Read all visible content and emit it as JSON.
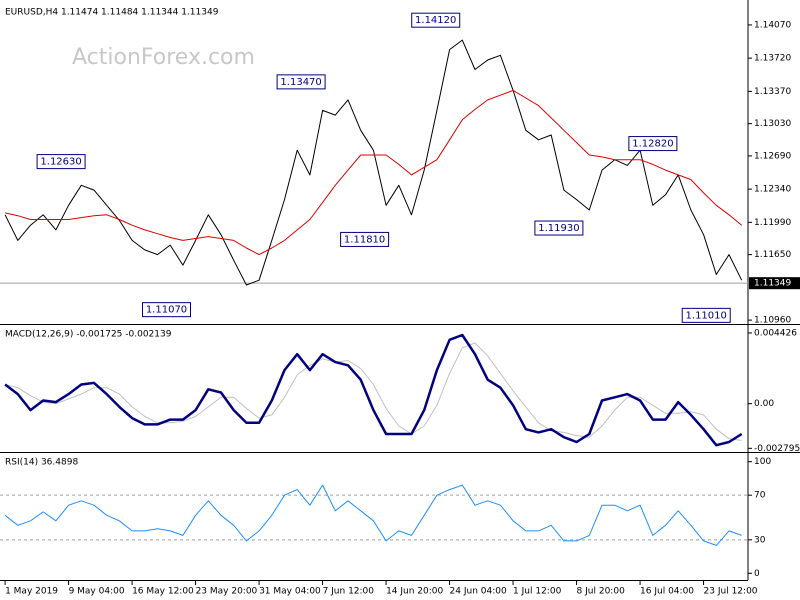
{
  "chart_data": [
    {
      "type": "line",
      "title": "EURUSD,H4  1.11474 1.11484 1.11344 1.11349",
      "watermark": "ActionForex.com",
      "x": [
        0,
        1,
        2,
        3,
        4,
        5,
        6,
        7,
        8,
        9,
        10,
        11,
        12,
        13,
        14,
        15,
        16,
        17,
        18,
        19,
        20,
        21,
        22,
        23,
        24,
        25,
        26,
        27,
        28,
        29,
        30,
        31,
        32,
        33,
        34,
        35,
        36,
        37,
        38,
        39,
        40,
        41,
        42,
        43,
        44,
        45,
        46,
        47,
        48,
        49,
        50,
        51,
        52,
        53,
        54,
        55,
        56,
        57,
        58
      ],
      "series": [
        {
          "color": "#000000",
          "width": 1,
          "values": [
            1.1207,
            1.118,
            1.1196,
            1.1207,
            1.1191,
            1.1217,
            1.1238,
            1.1233,
            1.1217,
            1.1201,
            1.118,
            1.117,
            1.1165,
            1.1175,
            1.1154,
            1.118,
            1.1207,
            1.1186,
            1.1159,
            1.1133,
            1.1138,
            1.118,
            1.1223,
            1.1275,
            1.1249,
            1.1317,
            1.1312,
            1.1328,
            1.1296,
            1.1275,
            1.1217,
            1.1238,
            1.1207,
            1.1254,
            1.1317,
            1.1381,
            1.1391,
            1.136,
            1.137,
            1.1375,
            1.1338,
            1.1296,
            1.1286,
            1.1291,
            1.1233,
            1.1223,
            1.1212,
            1.1254,
            1.1265,
            1.1259,
            1.1275,
            1.1217,
            1.1228,
            1.1249,
            1.1212,
            1.1186,
            1.1144,
            1.1165,
            1.1138
          ]
        },
        {
          "color": "#e00000",
          "width": 1,
          "values": [
            1.1209,
            1.1206,
            1.1202,
            1.1202,
            1.1202,
            1.1202,
            1.1204,
            1.1206,
            1.1207,
            1.1202,
            1.1196,
            1.1191,
            1.1187,
            1.1183,
            1.118,
            1.1182,
            1.1184,
            1.1182,
            1.118,
            1.1172,
            1.1165,
            1.1172,
            1.118,
            1.1191,
            1.1202,
            1.122,
            1.1238,
            1.1254,
            1.127,
            1.127,
            1.127,
            1.126,
            1.1249,
            1.1257,
            1.1265,
            1.1286,
            1.1307,
            1.1318,
            1.1328,
            1.1333,
            1.1338,
            1.133,
            1.1322,
            1.1309,
            1.1296,
            1.1283,
            1.127,
            1.1268,
            1.1265,
            1.1265,
            1.1265,
            1.126,
            1.1254,
            1.1249,
            1.1244,
            1.123,
            1.1217,
            1.1207,
            1.1196
          ]
        }
      ],
      "annotations": [
        {
          "x": 6.3,
          "value": 1.1263,
          "label": "1.12630"
        },
        {
          "x": 14.6,
          "value": 1.1107,
          "label": "1.11070"
        },
        {
          "x": 25.2,
          "value": 1.1347,
          "label": "1.13470"
        },
        {
          "x": 30.2,
          "value": 1.1181,
          "label": "1.11810"
        },
        {
          "x": 35.8,
          "value": 1.1412,
          "label": "1.14120"
        },
        {
          "x": 45.5,
          "value": 1.1193,
          "label": "1.11930"
        },
        {
          "x": 52.9,
          "value": 1.1282,
          "label": "1.12820"
        },
        {
          "x": 57.1,
          "value": 1.1101,
          "label": "1.11010"
        }
      ],
      "current": {
        "value": 1.11349,
        "label": "1.11349"
      },
      "xlim": [
        -0.4,
        58.5
      ],
      "ylim": [
        1.1094,
        1.1428
      ],
      "yticks": [
        {
          "value": 1.1407,
          "label": "1.14070"
        },
        {
          "value": 1.1372,
          "label": "1.13720"
        },
        {
          "value": 1.1337,
          "label": "1.13370"
        },
        {
          "value": 1.1303,
          "label": "1.13030"
        },
        {
          "value": 1.1269,
          "label": "1.12690"
        },
        {
          "value": 1.1234,
          "label": "1.12340"
        },
        {
          "value": 1.1199,
          "label": "1.11990"
        },
        {
          "value": 1.1165,
          "label": "1.11650"
        },
        {
          "value": 1.1096,
          "label": "1.10960"
        }
      ]
    },
    {
      "type": "line",
      "title": "MACD(12,26,9) -0.001725 -0.002139",
      "x": [
        0,
        1,
        2,
        3,
        4,
        5,
        6,
        7,
        8,
        9,
        10,
        11,
        12,
        13,
        14,
        15,
        16,
        17,
        18,
        19,
        20,
        21,
        22,
        23,
        24,
        25,
        26,
        27,
        28,
        29,
        30,
        31,
        32,
        33,
        34,
        35,
        36,
        37,
        38,
        39,
        40,
        41,
        42,
        43,
        44,
        45,
        46,
        47,
        48,
        49,
        50,
        51,
        52,
        53,
        54,
        55,
        56,
        57,
        58
      ],
      "series": [
        {
          "color": "#c0c0c0",
          "width": 1,
          "values": [
            0.0012,
            0.001,
            0.0005,
            0.0001,
            0.0,
            0.0003,
            0.0006,
            0.001,
            0.001,
            0.0006,
            -0.0002,
            -0.0008,
            -0.0012,
            -0.0012,
            -0.0011,
            -0.0008,
            -0.0002,
            0.0004,
            0.0004,
            -0.0003,
            -0.0009,
            -0.0007,
            0.0004,
            0.0018,
            0.0024,
            0.0028,
            0.0026,
            0.0027,
            0.0022,
            0.0012,
            -0.0003,
            -0.0014,
            -0.0019,
            -0.0014,
            -0.0001,
            0.0019,
            0.0035,
            0.0038,
            0.003,
            0.0019,
            0.0008,
            -0.0002,
            -0.0012,
            -0.0017,
            -0.0018,
            -0.002,
            -0.0021,
            -0.0014,
            -0.0004,
            0.0004,
            0.0004,
            -0.0001,
            -0.0006,
            -0.0006,
            -0.0005,
            -0.0007,
            -0.0016,
            -0.0022,
            -0.0023
          ]
        },
        {
          "color": "#000080",
          "width": 2.5,
          "values": [
            0.0012,
            0.0006,
            -0.0004,
            0.0002,
            0.0001,
            0.0006,
            0.0012,
            0.0013,
            0.0006,
            -0.0002,
            -0.0009,
            -0.0013,
            -0.0013,
            -0.001,
            -0.001,
            -0.0004,
            0.0009,
            0.0007,
            -0.0004,
            -0.0012,
            -0.0012,
            0.0002,
            0.0021,
            0.0031,
            0.0021,
            0.0031,
            0.0026,
            0.0024,
            0.0015,
            -0.0004,
            -0.0019,
            -0.0019,
            -0.0019,
            -0.0004,
            0.0021,
            0.004,
            0.0043,
            0.0031,
            0.0015,
            0.001,
            -0.0001,
            -0.0016,
            -0.0018,
            -0.0016,
            -0.0021,
            -0.0024,
            -0.0019,
            0.0002,
            0.0004,
            0.0006,
            0.0002,
            -0.001,
            -0.001,
            0.0001,
            -0.0007,
            -0.0016,
            -0.0026,
            -0.0024,
            -0.0019
          ]
        }
      ],
      "xlim": [
        -0.4,
        58.5
      ],
      "ylim": [
        -0.0029,
        0.0048
      ],
      "yticks": [
        0.004426,
        {
          "value": 0,
          "label": "0.00"
        },
        -0.002795
      ]
    },
    {
      "type": "line",
      "title": "RSI(14) 36.4898",
      "x": [
        0,
        1,
        2,
        3,
        4,
        5,
        6,
        7,
        8,
        9,
        10,
        11,
        12,
        13,
        14,
        15,
        16,
        17,
        18,
        19,
        20,
        21,
        22,
        23,
        24,
        25,
        26,
        27,
        28,
        29,
        30,
        31,
        32,
        33,
        34,
        35,
        36,
        37,
        38,
        39,
        40,
        41,
        42,
        43,
        44,
        45,
        46,
        47,
        48,
        49,
        50,
        51,
        52,
        53,
        54,
        55,
        56,
        57,
        58
      ],
      "series": [
        {
          "color": "#1e90ff",
          "width": 1,
          "values": [
            52,
            43,
            47,
            55,
            47,
            61,
            65,
            61,
            52,
            47,
            38,
            38,
            40,
            38,
            34,
            52,
            65,
            52,
            43,
            29,
            38,
            52,
            70,
            75,
            61,
            79,
            56,
            65,
            56,
            47,
            29,
            38,
            34,
            52,
            70,
            75,
            79,
            61,
            65,
            61,
            47,
            38,
            38,
            43,
            29,
            29,
            34,
            61,
            61,
            56,
            61,
            34,
            43,
            56,
            43,
            29,
            25,
            38,
            34
          ]
        }
      ],
      "levels": [
        70,
        30
      ],
      "xlim": [
        -0.4,
        58.5
      ],
      "ylim": [
        -6,
        106
      ],
      "yticks": [
        100,
        70,
        30,
        0
      ],
      "xticks": [
        {
          "value": 0,
          "label": "1 May 2019"
        },
        {
          "value": 5,
          "label": "9 May 04:00"
        },
        {
          "value": 10,
          "label": "16 May 12:00"
        },
        {
          "value": 15,
          "label": "23 May 20:00"
        },
        {
          "value": 20,
          "label": "31 May 04:00"
        },
        {
          "value": 25,
          "label": "7 Jun 12:00"
        },
        {
          "value": 30,
          "label": "14 Jun 20:00"
        },
        {
          "value": 35,
          "label": "24 Jun 04:00"
        },
        {
          "value": 40,
          "label": "1 Jul 12:00"
        },
        {
          "value": 45,
          "label": "8 Jul 20:00"
        },
        {
          "value": 50,
          "label": "16 Jul 04:00"
        },
        {
          "value": 55,
          "label": "23 Jul 12:00"
        }
      ]
    }
  ]
}
